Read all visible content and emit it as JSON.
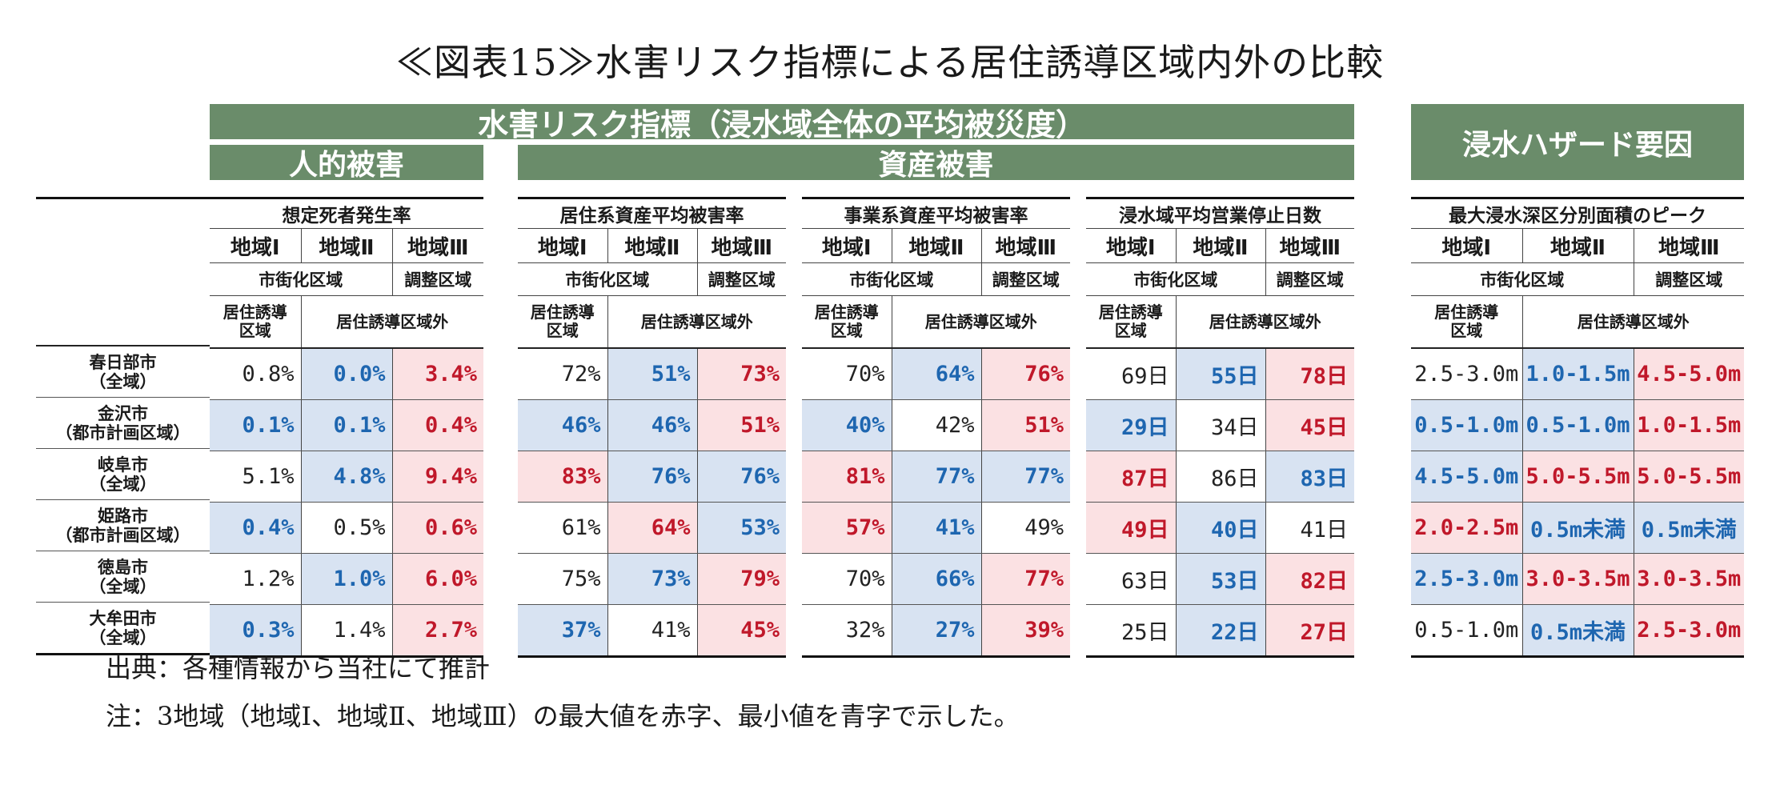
{
  "title": "≪図表15≫水害リスク指標による居住誘導区域内外の比較",
  "bands": {
    "main": "水害リスク指標（浸水域全体の平均被災度）",
    "human": "人的被害",
    "asset": "資産被害",
    "hazard": "浸水ハザード要因"
  },
  "cities": [
    {
      "name": "春日部市",
      "sub": "（全域）"
    },
    {
      "name": "金沢市",
      "sub": "（都市計画区域）"
    },
    {
      "name": "岐阜市",
      "sub": "（全域）"
    },
    {
      "name": "姫路市",
      "sub": "（都市計画区域）"
    },
    {
      "name": "徳島市",
      "sub": "（全域）"
    },
    {
      "name": "大牟田市",
      "sub": "（全域）"
    }
  ],
  "sub_headers": {
    "area1": "地域Ⅰ",
    "area2": "地域Ⅱ",
    "area3": "地域Ⅲ",
    "urbanization": "市街化区域",
    "adjust": "調整区域",
    "inside_l1": "居住誘導",
    "inside_l2": "区域",
    "outside": "居住誘導区域外"
  },
  "sections": [
    {
      "title": "想定死者発生率",
      "rows": [
        [
          {
            "v": "0.8%",
            "c": "black",
            "bg": ""
          },
          {
            "v": "0.0%",
            "c": "blue",
            "bg": "blue"
          },
          {
            "v": "3.4%",
            "c": "red",
            "bg": "red"
          }
        ],
        [
          {
            "v": "0.1%",
            "c": "blue",
            "bg": "blue"
          },
          {
            "v": "0.1%",
            "c": "blue",
            "bg": "blue"
          },
          {
            "v": "0.4%",
            "c": "red",
            "bg": "red"
          }
        ],
        [
          {
            "v": "5.1%",
            "c": "black",
            "bg": ""
          },
          {
            "v": "4.8%",
            "c": "blue",
            "bg": "blue"
          },
          {
            "v": "9.4%",
            "c": "red",
            "bg": "red"
          }
        ],
        [
          {
            "v": "0.4%",
            "c": "blue",
            "bg": "blue"
          },
          {
            "v": "0.5%",
            "c": "black",
            "bg": ""
          },
          {
            "v": "0.6%",
            "c": "red",
            "bg": "red"
          }
        ],
        [
          {
            "v": "1.2%",
            "c": "black",
            "bg": ""
          },
          {
            "v": "1.0%",
            "c": "blue",
            "bg": "blue"
          },
          {
            "v": "6.0%",
            "c": "red",
            "bg": "red"
          }
        ],
        [
          {
            "v": "0.3%",
            "c": "blue",
            "bg": "blue"
          },
          {
            "v": "1.4%",
            "c": "black",
            "bg": ""
          },
          {
            "v": "2.7%",
            "c": "red",
            "bg": "red"
          }
        ]
      ]
    },
    {
      "title": "居住系資産平均被害率",
      "rows": [
        [
          {
            "v": "72%",
            "c": "black",
            "bg": ""
          },
          {
            "v": "51%",
            "c": "blue",
            "bg": "blue"
          },
          {
            "v": "73%",
            "c": "red",
            "bg": "red"
          }
        ],
        [
          {
            "v": "46%",
            "c": "blue",
            "bg": "blue"
          },
          {
            "v": "46%",
            "c": "blue",
            "bg": "blue"
          },
          {
            "v": "51%",
            "c": "red",
            "bg": "red"
          }
        ],
        [
          {
            "v": "83%",
            "c": "red",
            "bg": "red"
          },
          {
            "v": "76%",
            "c": "blue",
            "bg": "blue"
          },
          {
            "v": "76%",
            "c": "blue",
            "bg": "blue"
          }
        ],
        [
          {
            "v": "61%",
            "c": "black",
            "bg": ""
          },
          {
            "v": "64%",
            "c": "red",
            "bg": "red"
          },
          {
            "v": "53%",
            "c": "blue",
            "bg": "blue"
          }
        ],
        [
          {
            "v": "75%",
            "c": "black",
            "bg": ""
          },
          {
            "v": "73%",
            "c": "blue",
            "bg": "blue"
          },
          {
            "v": "79%",
            "c": "red",
            "bg": "red"
          }
        ],
        [
          {
            "v": "37%",
            "c": "blue",
            "bg": "blue"
          },
          {
            "v": "41%",
            "c": "black",
            "bg": ""
          },
          {
            "v": "45%",
            "c": "red",
            "bg": "red"
          }
        ]
      ]
    },
    {
      "title": "事業系資産平均被害率",
      "rows": [
        [
          {
            "v": "70%",
            "c": "black",
            "bg": ""
          },
          {
            "v": "64%",
            "c": "blue",
            "bg": "blue"
          },
          {
            "v": "76%",
            "c": "red",
            "bg": "red"
          }
        ],
        [
          {
            "v": "40%",
            "c": "blue",
            "bg": "blue"
          },
          {
            "v": "42%",
            "c": "black",
            "bg": ""
          },
          {
            "v": "51%",
            "c": "red",
            "bg": "red"
          }
        ],
        [
          {
            "v": "81%",
            "c": "red",
            "bg": "red"
          },
          {
            "v": "77%",
            "c": "blue",
            "bg": "blue"
          },
          {
            "v": "77%",
            "c": "blue",
            "bg": "blue"
          }
        ],
        [
          {
            "v": "57%",
            "c": "red",
            "bg": "red"
          },
          {
            "v": "41%",
            "c": "blue",
            "bg": "blue"
          },
          {
            "v": "49%",
            "c": "black",
            "bg": ""
          }
        ],
        [
          {
            "v": "70%",
            "c": "black",
            "bg": ""
          },
          {
            "v": "66%",
            "c": "blue",
            "bg": "blue"
          },
          {
            "v": "77%",
            "c": "red",
            "bg": "red"
          }
        ],
        [
          {
            "v": "32%",
            "c": "black",
            "bg": ""
          },
          {
            "v": "27%",
            "c": "blue",
            "bg": "blue"
          },
          {
            "v": "39%",
            "c": "red",
            "bg": "red"
          }
        ]
      ]
    },
    {
      "title": "浸水域平均営業停止日数",
      "rows": [
        [
          {
            "v": "69日",
            "c": "black",
            "bg": ""
          },
          {
            "v": "55日",
            "c": "blue",
            "bg": "blue"
          },
          {
            "v": "78日",
            "c": "red",
            "bg": "red"
          }
        ],
        [
          {
            "v": "29日",
            "c": "blue",
            "bg": "blue"
          },
          {
            "v": "34日",
            "c": "black",
            "bg": ""
          },
          {
            "v": "45日",
            "c": "red",
            "bg": "red"
          }
        ],
        [
          {
            "v": "87日",
            "c": "red",
            "bg": "red"
          },
          {
            "v": "86日",
            "c": "black",
            "bg": ""
          },
          {
            "v": "83日",
            "c": "blue",
            "bg": "blue"
          }
        ],
        [
          {
            "v": "49日",
            "c": "red",
            "bg": "red"
          },
          {
            "v": "40日",
            "c": "blue",
            "bg": "blue"
          },
          {
            "v": "41日",
            "c": "black",
            "bg": ""
          }
        ],
        [
          {
            "v": "63日",
            "c": "black",
            "bg": ""
          },
          {
            "v": "53日",
            "c": "blue",
            "bg": "blue"
          },
          {
            "v": "82日",
            "c": "red",
            "bg": "red"
          }
        ],
        [
          {
            "v": "25日",
            "c": "black",
            "bg": ""
          },
          {
            "v": "22日",
            "c": "blue",
            "bg": "blue"
          },
          {
            "v": "27日",
            "c": "red",
            "bg": "red"
          }
        ]
      ]
    },
    {
      "title": "最大浸水深区分別面積のピーク",
      "rows": [
        [
          {
            "v": "2.5-3.0m",
            "c": "black",
            "bg": ""
          },
          {
            "v": "1.0-1.5m",
            "c": "blue",
            "bg": "blue"
          },
          {
            "v": "4.5-5.0m",
            "c": "red",
            "bg": "red"
          }
        ],
        [
          {
            "v": "0.5-1.0m",
            "c": "blue",
            "bg": "blue"
          },
          {
            "v": "0.5-1.0m",
            "c": "blue",
            "bg": "blue"
          },
          {
            "v": "1.0-1.5m",
            "c": "red",
            "bg": "red"
          }
        ],
        [
          {
            "v": "4.5-5.0m",
            "c": "blue",
            "bg": "blue"
          },
          {
            "v": "5.0-5.5m",
            "c": "red",
            "bg": "red"
          },
          {
            "v": "5.0-5.5m",
            "c": "red",
            "bg": "red"
          }
        ],
        [
          {
            "v": "2.0-2.5m",
            "c": "red",
            "bg": "red"
          },
          {
            "v": "0.5m未満",
            "c": "blue",
            "bg": "blue"
          },
          {
            "v": "0.5m未満",
            "c": "blue",
            "bg": "blue"
          }
        ],
        [
          {
            "v": "2.5-3.0m",
            "c": "blue",
            "bg": "blue"
          },
          {
            "v": "3.0-3.5m",
            "c": "red",
            "bg": "red"
          },
          {
            "v": "3.0-3.5m",
            "c": "red",
            "bg": "red"
          }
        ],
        [
          {
            "v": "0.5-1.0m",
            "c": "black",
            "bg": ""
          },
          {
            "v": "0.5m未満",
            "c": "blue",
            "bg": "blue"
          },
          {
            "v": "2.5-3.0m",
            "c": "red",
            "bg": "red"
          }
        ]
      ]
    }
  ],
  "notes": {
    "source": "出典：各種情報から当社にて推計",
    "note": "注：3地域（地域Ⅰ、地域Ⅱ、地域Ⅲ）の最大値を赤字、最小値を青字で示した。"
  }
}
